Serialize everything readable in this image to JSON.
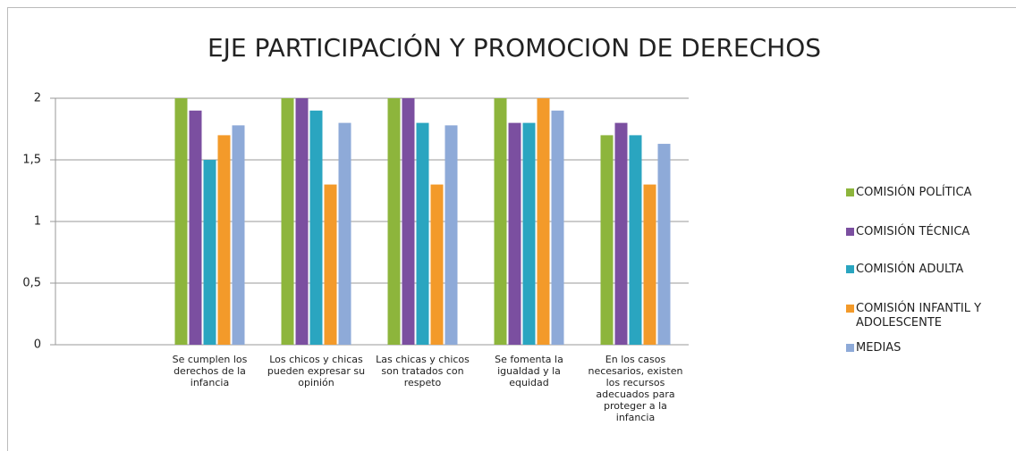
{
  "chart_data": {
    "type": "bar",
    "title": "EJE PARTICIPACIÓN Y PROMOCION DE DERECHOS",
    "categories": [
      null,
      "Se cumplen los derechos de la infancia",
      "Los chicos y chicas pueden expresar su opinión",
      "Las chicas y chicos son tratados con respeto",
      "Se fomenta la igualdad y la equidad",
      "En los casos necesarios, existen los recursos adecuados para proteger a la infancia"
    ],
    "series": [
      {
        "name": "COMISIÓN POLÍTICA",
        "color": "#8db53c",
        "values": [
          null,
          2,
          2,
          2,
          2,
          1.7
        ]
      },
      {
        "name": "COMISIÓN TÉCNICA",
        "color": "#7b4fa0",
        "values": [
          null,
          1.9,
          2,
          2,
          1.8,
          1.8
        ]
      },
      {
        "name": "COMISIÓN ADULTA",
        "color": "#2aa5c0",
        "values": [
          null,
          1.5,
          1.9,
          1.8,
          1.8,
          1.7
        ]
      },
      {
        "name": "COMISIÓN INFANTIL Y ADOLESCENTE",
        "color": "#f39a2a",
        "values": [
          null,
          1.7,
          1.3,
          1.3,
          2,
          1.3
        ]
      },
      {
        "name": "MEDIAS",
        "color": "#8eaad8",
        "values": [
          null,
          1.78,
          1.8,
          1.78,
          1.9,
          1.63
        ]
      }
    ],
    "ylim": [
      0,
      2
    ],
    "yticks": [
      0,
      {
        "value": 0.5,
        "label": "0,5"
      },
      1,
      {
        "value": 1.5,
        "label": "1,5"
      },
      2
    ],
    "grid": true,
    "legend": "right"
  }
}
